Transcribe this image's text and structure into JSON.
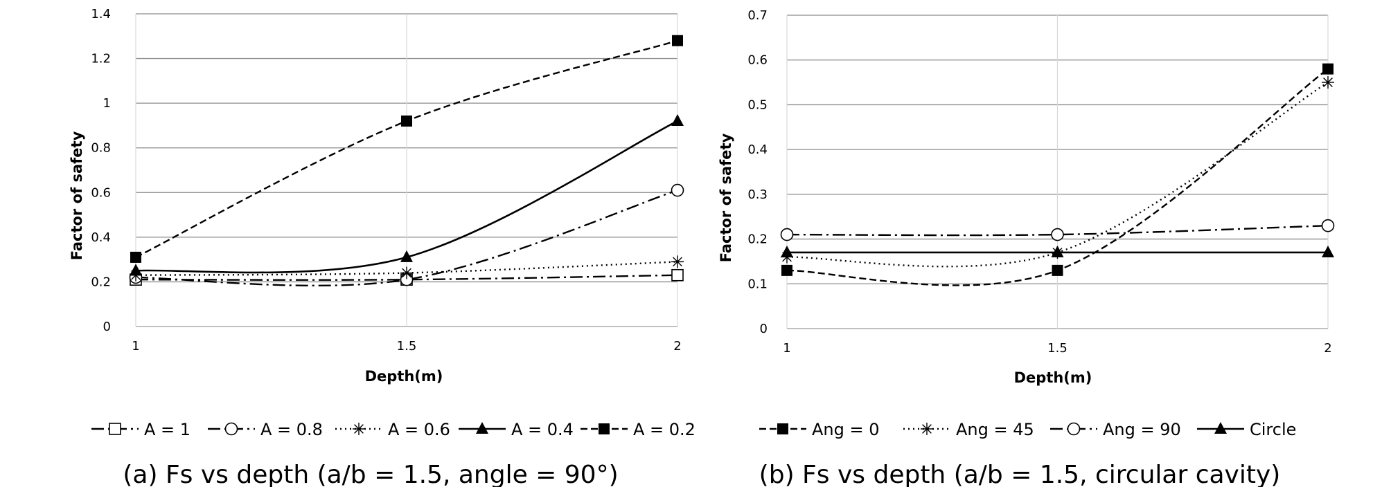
{
  "chart_data": [
    {
      "type": "line",
      "xlabel": "Depth(m)",
      "ylabel": "Factor of safety",
      "caption": "(a) Fs vs depth (a/b = 1.5, angle = 90°)",
      "categories": [
        "1",
        "1.5",
        "2"
      ],
      "x": [
        1,
        1.5,
        2
      ],
      "ylim": [
        0,
        1.4
      ],
      "yticks": [
        "0",
        "0.2",
        "0.4",
        "0.6",
        "0.8",
        "1",
        "1.2",
        "1.4"
      ],
      "grid": "horizontal",
      "legend_position": "bottom",
      "series": [
        {
          "name": "A = 1",
          "values": [
            0.21,
            0.21,
            0.23
          ],
          "marker": "open-square",
          "dash": "long-dash-dot"
        },
        {
          "name": "A = 0.8",
          "values": [
            0.22,
            0.21,
            0.61
          ],
          "marker": "open-circle",
          "dash": "long-dash-dot"
        },
        {
          "name": "A = 0.6",
          "values": [
            0.23,
            0.24,
            0.29
          ],
          "marker": "asterisk",
          "dash": "dotted"
        },
        {
          "name": "A = 0.4",
          "values": [
            0.25,
            0.31,
            0.92
          ],
          "marker": "filled-triangle",
          "dash": "solid"
        },
        {
          "name": "A = 0.2",
          "values": [
            0.31,
            0.92,
            1.28
          ],
          "marker": "filled-square",
          "dash": "dashed"
        }
      ]
    },
    {
      "type": "line",
      "xlabel": "Depth(m)",
      "ylabel": "Factor of safety",
      "caption": "(b) Fs vs depth (a/b = 1.5, circular cavity)",
      "categories": [
        "1",
        "1.5",
        "2"
      ],
      "x": [
        1,
        1.5,
        2
      ],
      "ylim": [
        0,
        0.7
      ],
      "yticks": [
        "0",
        "0.1",
        "0.2",
        "0.3",
        "0.4",
        "0.5",
        "0.6",
        "0.7"
      ],
      "grid": "horizontal",
      "legend_position": "bottom",
      "series": [
        {
          "name": "Ang = 0",
          "values": [
            0.13,
            0.13,
            0.58
          ],
          "marker": "filled-square",
          "dash": "dashed"
        },
        {
          "name": "Ang = 45",
          "values": [
            0.16,
            0.17,
            0.55
          ],
          "marker": "asterisk",
          "dash": "dotted"
        },
        {
          "name": "Ang = 90",
          "values": [
            0.21,
            0.21,
            0.23
          ],
          "marker": "open-circle",
          "dash": "long-dash-dot"
        },
        {
          "name": "Circle",
          "values": [
            0.17,
            0.17,
            0.17
          ],
          "marker": "filled-triangle",
          "dash": "solid"
        }
      ]
    }
  ]
}
